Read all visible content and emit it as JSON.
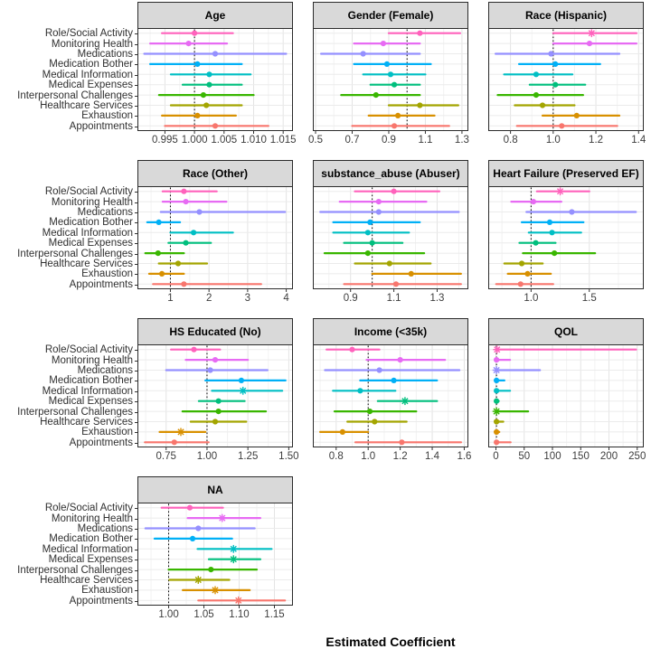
{
  "figure": {
    "xlabel": "Estimated Coefficient"
  },
  "chart_data": {
    "type": "scatter",
    "variant": "faceted-forest-pointrange",
    "grid": "on",
    "legend": "none",
    "reference_line": 1,
    "marker_note": "sig=true rendered as asterisk (significant), otherwise filled circle",
    "categories_top_to_bottom": [
      "Role/Social Activity",
      "Monitoring Health",
      "Medications",
      "Medication Bother",
      "Medical Information",
      "Medical Expenses",
      "Interpersonal Challenges",
      "Healthcare Services",
      "Exhaustion",
      "Appointments"
    ],
    "colors_top_to_bottom": [
      "#FF62BC",
      "#E76BF3",
      "#9590FF",
      "#00B0F6",
      "#00BFC4",
      "#00BF7D",
      "#39B600",
      "#A3A500",
      "#D89000",
      "#F8766D"
    ],
    "row_format": [
      "est",
      "lo",
      "hi",
      "sig"
    ],
    "panels": [
      {
        "title": "Age",
        "ref": 1,
        "xlim": [
          0.9905,
          1.0165
        ],
        "ticks": [
          0.995,
          1.0,
          1.005,
          1.01,
          1.015
        ],
        "tick_labels": [
          "0.995",
          "1.000",
          "1.005",
          "1.010",
          "1.015"
        ],
        "rows": [
          [
            1.0,
            0.9945,
            1.0065,
            false
          ],
          [
            0.999,
            0.9925,
            1.0055,
            false
          ],
          [
            1.0035,
            0.9915,
            1.0155,
            false
          ],
          [
            1.0005,
            0.9925,
            1.008,
            false
          ],
          [
            1.0025,
            0.996,
            1.0095,
            false
          ],
          [
            1.0025,
            0.998,
            1.008,
            false
          ],
          [
            1.0015,
            0.994,
            1.01,
            false
          ],
          [
            1.002,
            0.996,
            1.008,
            false
          ],
          [
            1.0005,
            0.9945,
            1.007,
            false
          ],
          [
            1.0035,
            0.995,
            1.0125,
            false
          ]
        ]
      },
      {
        "title": "Gender (Female)",
        "ref": 1,
        "xlim": [
          0.49,
          1.33
        ],
        "ticks": [
          0.5,
          0.7,
          0.9,
          1.1,
          1.3
        ],
        "tick_labels": [
          "0.5",
          "0.7",
          "0.9",
          "1.1",
          "1.3"
        ],
        "rows": [
          [
            1.07,
            0.9,
            1.29,
            false
          ],
          [
            0.87,
            0.71,
            1.07,
            false
          ],
          [
            0.76,
            0.53,
            1.07,
            false
          ],
          [
            0.89,
            0.71,
            1.13,
            false
          ],
          [
            0.91,
            0.76,
            1.1,
            false
          ],
          [
            0.93,
            0.8,
            1.07,
            false
          ],
          [
            0.83,
            0.64,
            1.07,
            false
          ],
          [
            1.07,
            0.9,
            1.28,
            false
          ],
          [
            0.95,
            0.79,
            1.15,
            false
          ],
          [
            0.93,
            0.7,
            1.23,
            false
          ]
        ]
      },
      {
        "title": "Race (Hispanic)",
        "ref": 1,
        "xlim": [
          0.7,
          1.42
        ],
        "ticks": [
          0.8,
          1.0,
          1.2,
          1.4
        ],
        "tick_labels": [
          "0.8",
          "1.0",
          "1.2",
          "1.4"
        ],
        "rows": [
          [
            1.18,
            1.0,
            1.39,
            true
          ],
          [
            1.17,
            1.0,
            1.39,
            false
          ],
          [
            0.99,
            0.73,
            1.31,
            false
          ],
          [
            1.01,
            0.84,
            1.22,
            false
          ],
          [
            0.92,
            0.77,
            1.09,
            false
          ],
          [
            1.01,
            0.89,
            1.15,
            false
          ],
          [
            0.92,
            0.74,
            1.14,
            false
          ],
          [
            0.95,
            0.82,
            1.1,
            false
          ],
          [
            1.11,
            0.95,
            1.31,
            false
          ],
          [
            1.04,
            0.83,
            1.3,
            false
          ]
        ]
      },
      {
        "title": "Race (Other)",
        "ref": 1,
        "xlim": [
          0.17,
          4.15
        ],
        "ticks": [
          1,
          2,
          3,
          4
        ],
        "tick_labels": [
          "1",
          "2",
          "3",
          "4"
        ],
        "rows": [
          [
            1.35,
            0.8,
            2.2,
            false
          ],
          [
            1.4,
            0.8,
            2.45,
            false
          ],
          [
            1.75,
            0.75,
            3.97,
            false
          ],
          [
            0.7,
            0.4,
            1.25,
            false
          ],
          [
            1.6,
            1.0,
            2.62,
            false
          ],
          [
            1.4,
            0.95,
            2.05,
            false
          ],
          [
            0.68,
            0.35,
            1.35,
            false
          ],
          [
            1.2,
            0.7,
            1.95,
            false
          ],
          [
            0.78,
            0.45,
            1.35,
            false
          ],
          [
            1.35,
            0.55,
            3.35,
            false
          ]
        ]
      },
      {
        "title": "substance_abuse (Abuser)",
        "ref": 1,
        "xlim": [
          0.73,
          1.44
        ],
        "ticks": [
          0.9,
          1.1,
          1.3
        ],
        "tick_labels": [
          "0.9",
          "1.1",
          "1.3"
        ],
        "rows": [
          [
            1.1,
            0.92,
            1.31,
            false
          ],
          [
            1.03,
            0.85,
            1.25,
            false
          ],
          [
            1.03,
            0.76,
            1.4,
            false
          ],
          [
            0.99,
            0.82,
            1.22,
            false
          ],
          [
            0.98,
            0.82,
            1.17,
            false
          ],
          [
            1.0,
            0.87,
            1.14,
            false
          ],
          [
            0.98,
            0.78,
            1.24,
            false
          ],
          [
            1.08,
            0.92,
            1.27,
            false
          ],
          [
            1.18,
            1.0,
            1.41,
            false
          ],
          [
            1.11,
            0.87,
            1.41,
            false
          ]
        ]
      },
      {
        "title": "Heart Failure (Preserved EF)",
        "ref": 1,
        "xlim": [
          0.64,
          1.96
        ],
        "ticks": [
          1.0,
          1.5
        ],
        "tick_labels": [
          "1.0",
          "1.5"
        ],
        "rows": [
          [
            1.25,
            1.05,
            1.5,
            true
          ],
          [
            1.02,
            0.83,
            1.26,
            false
          ],
          [
            1.35,
            0.96,
            1.9,
            false
          ],
          [
            1.16,
            0.92,
            1.45,
            false
          ],
          [
            1.18,
            0.98,
            1.43,
            false
          ],
          [
            1.04,
            0.9,
            1.21,
            false
          ],
          [
            1.2,
            0.93,
            1.55,
            false
          ],
          [
            0.92,
            0.77,
            1.1,
            false
          ],
          [
            0.97,
            0.8,
            1.17,
            false
          ],
          [
            0.91,
            0.7,
            1.19,
            false
          ]
        ]
      },
      {
        "title": "HS Educated (No)",
        "ref": 1,
        "xlim": [
          0.58,
          1.52
        ],
        "ticks": [
          0.75,
          1.0,
          1.25,
          1.5
        ],
        "tick_labels": [
          "0.75",
          "1.00",
          "1.25",
          "1.50"
        ],
        "rows": [
          [
            0.92,
            0.78,
            1.08,
            false
          ],
          [
            1.05,
            0.87,
            1.25,
            false
          ],
          [
            1.02,
            0.75,
            1.37,
            false
          ],
          [
            1.21,
            0.99,
            1.48,
            false
          ],
          [
            1.22,
            1.03,
            1.46,
            true
          ],
          [
            1.07,
            0.95,
            1.23,
            false
          ],
          [
            1.07,
            0.85,
            1.36,
            false
          ],
          [
            1.05,
            0.9,
            1.24,
            false
          ],
          [
            0.84,
            0.71,
            0.99,
            true
          ],
          [
            0.8,
            0.62,
            1.01,
            false
          ]
        ]
      },
      {
        "title": "Income (<35k)",
        "ref": 1,
        "xlim": [
          0.66,
          1.62
        ],
        "ticks": [
          0.8,
          1.0,
          1.2,
          1.4,
          1.6
        ],
        "tick_labels": [
          "0.8",
          "1.0",
          "1.2",
          "1.4",
          "1.6"
        ],
        "rows": [
          [
            0.9,
            0.74,
            1.07,
            false
          ],
          [
            1.2,
            0.99,
            1.48,
            false
          ],
          [
            1.07,
            0.73,
            1.57,
            false
          ],
          [
            1.16,
            0.95,
            1.43,
            false
          ],
          [
            0.95,
            0.78,
            1.17,
            false
          ],
          [
            1.23,
            1.06,
            1.43,
            true
          ],
          [
            1.01,
            0.79,
            1.3,
            false
          ],
          [
            1.04,
            0.87,
            1.24,
            false
          ],
          [
            0.84,
            0.7,
            1.0,
            false
          ],
          [
            1.21,
            0.92,
            1.58,
            false
          ]
        ]
      },
      {
        "title": "QOL",
        "ref": 1,
        "xlim": [
          -12,
          260
        ],
        "ticks": [
          0,
          50,
          100,
          150,
          200,
          250
        ],
        "tick_labels": [
          "0",
          "50",
          "100",
          "150",
          "200",
          "250"
        ],
        "rows": [
          [
            2,
            0,
            248,
            true
          ],
          [
            1,
            0,
            25,
            false
          ],
          [
            1,
            0,
            78,
            true
          ],
          [
            1,
            0,
            15,
            false
          ],
          [
            1,
            0,
            25,
            false
          ],
          [
            1,
            0,
            5,
            false
          ],
          [
            1,
            0,
            57,
            true
          ],
          [
            1,
            0,
            13,
            false
          ],
          [
            1,
            0,
            6,
            false
          ],
          [
            1,
            0,
            26,
            false
          ]
        ]
      },
      {
        "title": "NA",
        "ref": 1,
        "xlim": [
          0.957,
          1.175
        ],
        "ticks": [
          1.0,
          1.05,
          1.1,
          1.15
        ],
        "tick_labels": [
          "1.00",
          "1.05",
          "1.10",
          "1.15"
        ],
        "rows": [
          [
            1.03,
            0.99,
            1.077,
            false
          ],
          [
            1.076,
            1.027,
            1.13,
            true
          ],
          [
            1.042,
            0.967,
            1.122,
            false
          ],
          [
            1.034,
            0.98,
            1.09,
            false
          ],
          [
            1.092,
            1.041,
            1.146,
            true
          ],
          [
            1.092,
            1.057,
            1.13,
            true
          ],
          [
            1.06,
            1.0,
            1.125,
            false
          ],
          [
            1.042,
            1.001,
            1.086,
            true
          ],
          [
            1.066,
            1.02,
            1.115,
            true
          ],
          [
            1.099,
            1.042,
            1.165,
            true
          ]
        ]
      }
    ],
    "layout_rows": [
      [
        0,
        1,
        2
      ],
      [
        3,
        4,
        5
      ],
      [
        6,
        7,
        8
      ],
      [
        9
      ]
    ]
  }
}
